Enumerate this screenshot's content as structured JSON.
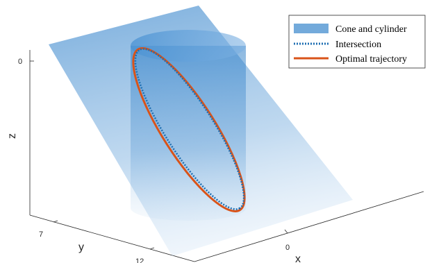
{
  "chart_data": {
    "type": "3d-surface",
    "title": "",
    "xlabel": "x",
    "ylabel": "y",
    "zlabel": "z",
    "x_ticks": [
      "0"
    ],
    "y_ticks": [
      "7",
      "12"
    ],
    "z_ticks": [
      "0"
    ],
    "legend_position": "top-right",
    "series": [
      {
        "name": "Cone and cylinder",
        "kind": "surface",
        "color": "#5b9bd5"
      },
      {
        "name": "Intersection",
        "kind": "dotted-line",
        "color": "#1f6fb2"
      },
      {
        "name": "Optimal trajectory",
        "kind": "line",
        "color": "#d95319"
      }
    ]
  },
  "colors": {
    "plane": "#6ea8dc",
    "cylinder": "#3a88cf",
    "intersection": "#1f6fb2",
    "trajectory": "#d95319",
    "axis": "#262626"
  }
}
